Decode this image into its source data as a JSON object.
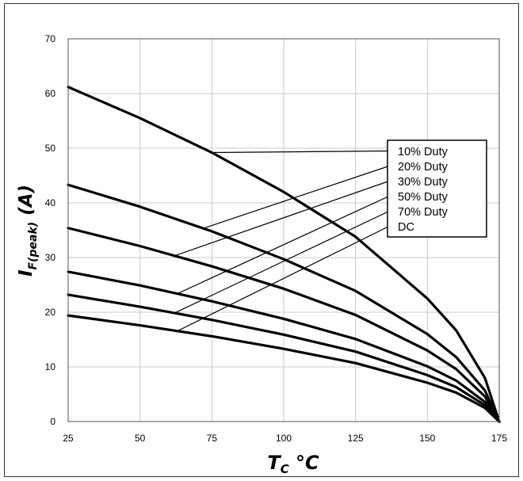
{
  "chart_data": {
    "type": "line",
    "title": "",
    "xlabel": "T_C °C",
    "ylabel": "I_F(peak) (A)",
    "xlabel_parts": {
      "main": "T",
      "sub": "C",
      "unit": " °C"
    },
    "ylabel_parts": {
      "main": "I",
      "sub": "F(peak)",
      "unit": " (A)"
    },
    "xlim": [
      25,
      175
    ],
    "ylim": [
      0,
      70
    ],
    "xticks": [
      25,
      50,
      75,
      100,
      125,
      150,
      175
    ],
    "yticks": [
      0,
      10,
      20,
      30,
      40,
      50,
      60,
      70
    ],
    "grid": true,
    "legend_position": "right",
    "series": [
      {
        "name": "10% Duty",
        "x": [
          25,
          50,
          75,
          100,
          125,
          150,
          160,
          170,
          175
        ],
        "y": [
          61.2,
          55.5,
          49.2,
          42.0,
          33.8,
          22.5,
          16.7,
          8.0,
          0
        ]
      },
      {
        "name": "20% Duty",
        "x": [
          25,
          50,
          75,
          100,
          125,
          150,
          160,
          170,
          175
        ],
        "y": [
          43.3,
          39.3,
          34.8,
          29.7,
          23.9,
          16.0,
          11.8,
          5.7,
          0
        ]
      },
      {
        "name": "30% Duty",
        "x": [
          25,
          50,
          75,
          100,
          125,
          150,
          160,
          170,
          175
        ],
        "y": [
          35.4,
          32.1,
          28.4,
          24.3,
          19.5,
          13.0,
          9.6,
          4.6,
          0
        ]
      },
      {
        "name": "50% Duty",
        "x": [
          25,
          50,
          75,
          100,
          125,
          150,
          160,
          170,
          175
        ],
        "y": [
          27.4,
          24.9,
          22.0,
          18.8,
          15.1,
          10.1,
          7.5,
          3.6,
          0
        ]
      },
      {
        "name": "70% Duty",
        "x": [
          25,
          50,
          75,
          100,
          125,
          150,
          160,
          170,
          175
        ],
        "y": [
          23.2,
          21.0,
          18.6,
          15.9,
          12.8,
          8.5,
          6.3,
          3.0,
          0
        ]
      },
      {
        "name": "DC",
        "x": [
          25,
          50,
          75,
          100,
          125,
          150,
          160,
          170,
          175
        ],
        "y": [
          19.4,
          17.6,
          15.6,
          13.3,
          10.7,
          7.1,
          5.3,
          2.5,
          0
        ]
      }
    ],
    "line_color": "#000000",
    "grid_color": "#c8c8c8"
  }
}
